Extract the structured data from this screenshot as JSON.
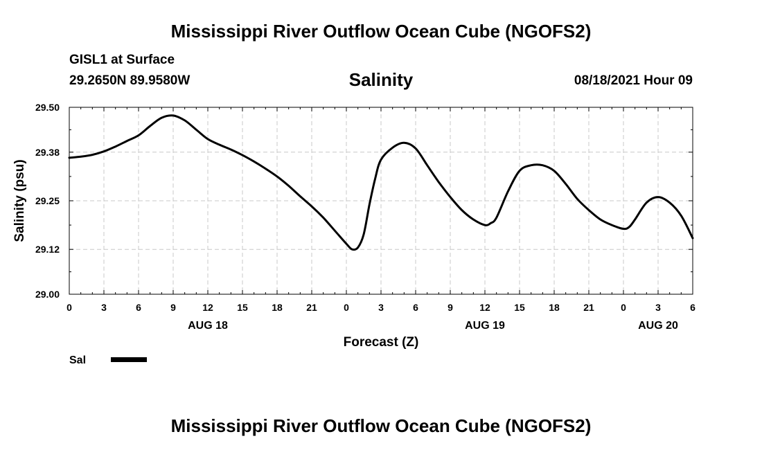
{
  "header": {
    "title": "Mississippi River Outflow Ocean Cube (NGOFS2)",
    "station": "GISL1 at Surface",
    "coords": "29.2650N  89.9580W",
    "variable": "Salinity",
    "datetime": "08/18/2021 Hour 09"
  },
  "footer": {
    "title": "Mississippi River Outflow Ocean Cube (NGOFS2)"
  },
  "chart_data": {
    "type": "line",
    "title": "Salinity",
    "xlabel": "Forecast (Z)",
    "ylabel": "Salinity (psu)",
    "xlim": [
      0,
      54
    ],
    "ylim": [
      29.0,
      29.5
    ],
    "yticks": [
      29.0,
      29.12,
      29.25,
      29.38,
      29.5
    ],
    "ytick_labels": [
      "29.00",
      "29.12",
      "29.25",
      "29.38",
      "29.50"
    ],
    "xticks": [
      0,
      3,
      6,
      9,
      12,
      15,
      18,
      21,
      24,
      27,
      30,
      33,
      36,
      39,
      42,
      45,
      48,
      51,
      54
    ],
    "xtick_labels": [
      "0",
      "3",
      "6",
      "9",
      "12",
      "15",
      "18",
      "21",
      "0",
      "3",
      "6",
      "9",
      "12",
      "15",
      "18",
      "21",
      "0",
      "3",
      "6"
    ],
    "date_labels": [
      {
        "x": 12,
        "label": "AUG 18"
      },
      {
        "x": 36,
        "label": "AUG 19"
      },
      {
        "x": 51,
        "label": "AUG 20"
      }
    ],
    "grid": true,
    "legend_position": "bottom-left",
    "series": [
      {
        "name": "Sal",
        "x": [
          0,
          1,
          2,
          3,
          4,
          5,
          6,
          7,
          8,
          9,
          10,
          11,
          12,
          13,
          14,
          15,
          16,
          17,
          18,
          19,
          20,
          21,
          22,
          23,
          24,
          24.5,
          25,
          25.5,
          26,
          26.5,
          27,
          28,
          29,
          30,
          31,
          32,
          33,
          34,
          35,
          36,
          36.5,
          37,
          38,
          39,
          40,
          41,
          42,
          43,
          44,
          45,
          46,
          47,
          48,
          48.5,
          49,
          50,
          51,
          52,
          53,
          54
        ],
        "values": [
          29.365,
          29.368,
          29.373,
          29.382,
          29.395,
          29.41,
          29.425,
          29.45,
          29.472,
          29.478,
          29.465,
          29.44,
          29.415,
          29.4,
          29.387,
          29.372,
          29.355,
          29.336,
          29.315,
          29.29,
          29.262,
          29.235,
          29.205,
          29.17,
          29.135,
          29.12,
          29.125,
          29.16,
          29.24,
          29.31,
          29.36,
          29.392,
          29.405,
          29.39,
          29.345,
          29.3,
          29.26,
          29.225,
          29.2,
          29.185,
          29.19,
          29.205,
          29.275,
          29.33,
          29.345,
          29.345,
          29.33,
          29.295,
          29.255,
          29.225,
          29.2,
          29.185,
          29.175,
          29.18,
          29.2,
          29.245,
          29.26,
          29.245,
          29.21,
          29.15
        ]
      }
    ]
  }
}
